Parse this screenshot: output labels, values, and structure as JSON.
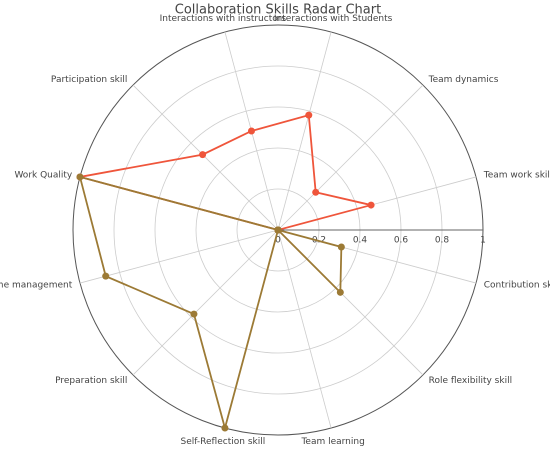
{
  "chart_data": {
    "type": "radar",
    "title": "Collaboration Skills Radar Chart",
    "categories": [
      "Team work skill",
      "Team dynamics",
      "Interactions with Students",
      "Interactions with instructors",
      "Participation skill",
      "Work Quality",
      "Time management",
      "Preparation skill",
      "Self-Reflection skill",
      "Team learning",
      "Role flexibility skill",
      "Contribution skill"
    ],
    "series": [
      {
        "color": "#ef553b",
        "values": [
          0.47,
          0.26,
          0.58,
          0.5,
          0.52,
          1,
          0,
          0,
          0,
          0,
          0,
          0
        ]
      },
      {
        "color": "#9c7a35",
        "values": [
          0,
          0,
          0,
          0,
          0,
          1,
          0.87,
          0.58,
          1,
          0,
          0.43,
          0.32
        ]
      }
    ],
    "rlim": [
      0,
      1
    ],
    "rticks": [
      0,
      0.2,
      0.4,
      0.6,
      0.8,
      1
    ],
    "rotation": 15,
    "direction": "counterclockwise",
    "grid": true
  }
}
